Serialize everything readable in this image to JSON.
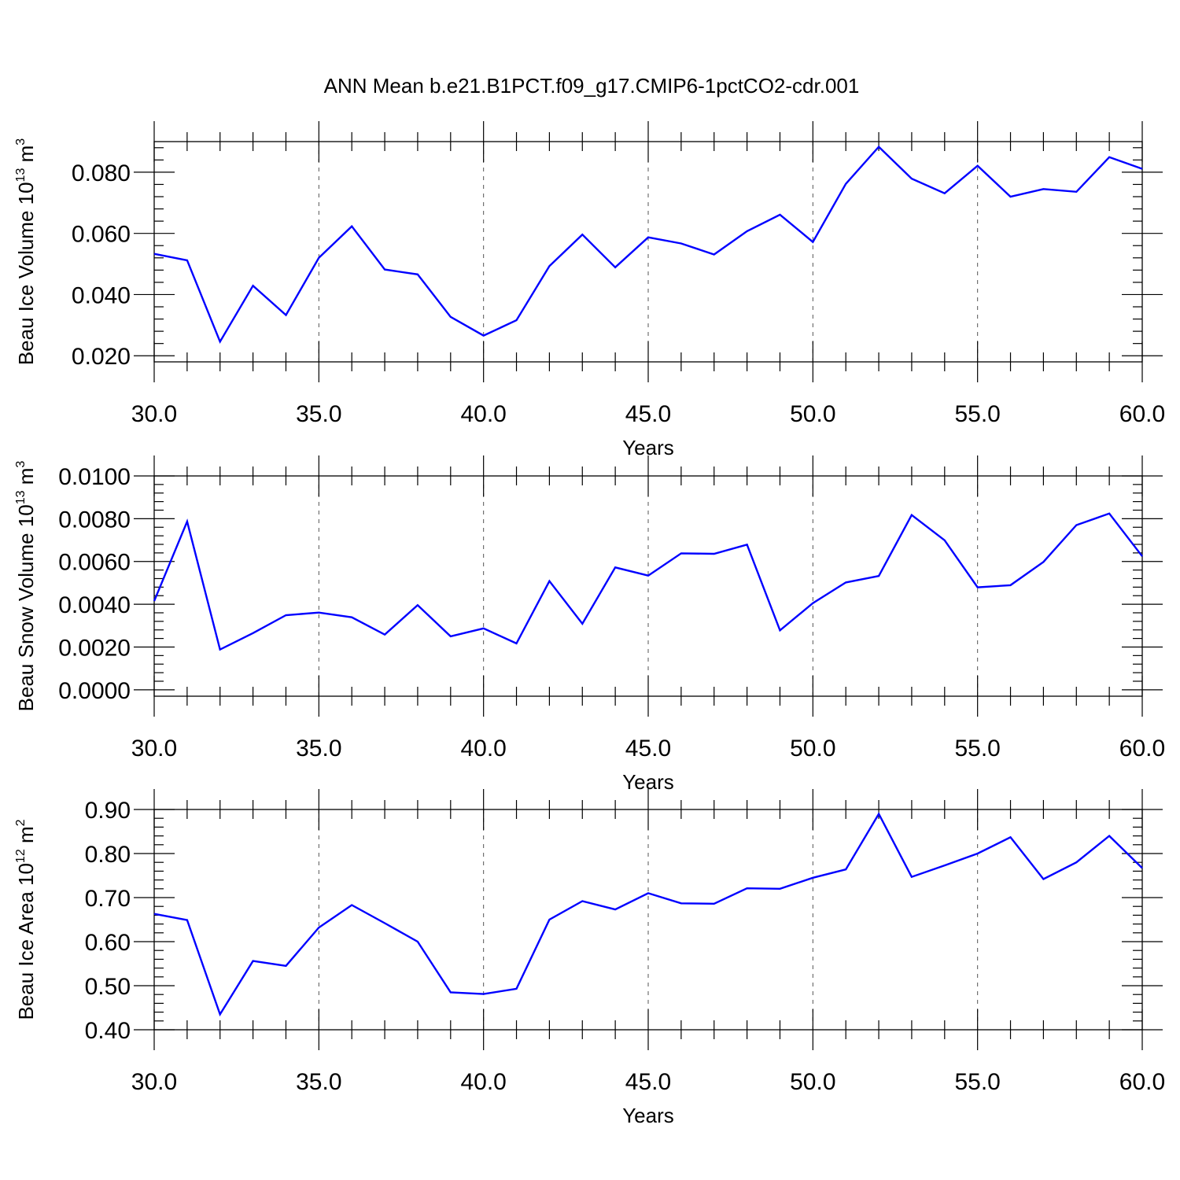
{
  "title": "ANN Mean b.e21.B1PCT.f09_g17.CMIP6-1pctCO2-cdr.001",
  "colors": {
    "line": "#0000ff",
    "axis": "#000000",
    "grid": "#555555"
  },
  "chart_data": [
    {
      "type": "line",
      "xlabel": "Years",
      "ylabel": {
        "text": "Beau Ice Volume 10",
        "sup1": "13",
        "mid": " m",
        "sup2": "3"
      },
      "xlim": [
        30,
        60
      ],
      "ylim": [
        0.018,
        0.09
      ],
      "x_ticks": [
        30,
        35,
        40,
        45,
        50,
        55,
        60
      ],
      "x_tick_labels": [
        "30.0",
        "35.0",
        "40.0",
        "45.0",
        "50.0",
        "55.0",
        "60.0"
      ],
      "y_ticks": [
        0.02,
        0.04,
        0.06,
        0.08
      ],
      "y_tick_labels": [
        "0.020",
        "0.040",
        "0.060",
        "0.080"
      ],
      "y_minor_step": 0.004,
      "grid": "vertical-dashed",
      "x": [
        30,
        31,
        32,
        33,
        34,
        35,
        36,
        37,
        38,
        39,
        40,
        41,
        42,
        43,
        44,
        45,
        46,
        47,
        48,
        49,
        50,
        51,
        52,
        53,
        54,
        55,
        56,
        57,
        58,
        59,
        60
      ],
      "values": [
        0.0533,
        0.0512,
        0.0246,
        0.0429,
        0.0333,
        0.052,
        0.0623,
        0.0482,
        0.0466,
        0.0327,
        0.0266,
        0.0316,
        0.0493,
        0.0596,
        0.0489,
        0.0587,
        0.0567,
        0.0531,
        0.0607,
        0.0661,
        0.0572,
        0.0762,
        0.0883,
        0.0779,
        0.0731,
        0.0821,
        0.072,
        0.0745,
        0.0736,
        0.0849,
        0.0811
      ]
    },
    {
      "type": "line",
      "xlabel": "Years",
      "ylabel": {
        "text": "Beau Snow Volume 10",
        "sup1": "13",
        "mid": " m",
        "sup2": "3"
      },
      "xlim": [
        30,
        60
      ],
      "ylim": [
        -0.0003,
        0.01
      ],
      "x_ticks": [
        30,
        35,
        40,
        45,
        50,
        55,
        60
      ],
      "x_tick_labels": [
        "30.0",
        "35.0",
        "40.0",
        "45.0",
        "50.0",
        "55.0",
        "60.0"
      ],
      "y_ticks": [
        0.0,
        0.002,
        0.004,
        0.006,
        0.008,
        0.01
      ],
      "y_tick_labels": [
        "0.0000",
        "0.0020",
        "0.0040",
        "0.0060",
        "0.0080",
        "0.0100"
      ],
      "y_minor_step": 0.0004,
      "grid": "vertical-dashed",
      "x": [
        30,
        31,
        32,
        33,
        34,
        35,
        36,
        37,
        38,
        39,
        40,
        41,
        42,
        43,
        44,
        45,
        46,
        47,
        48,
        49,
        50,
        51,
        52,
        53,
        54,
        55,
        56,
        57,
        58,
        59,
        60
      ],
      "values": [
        0.00415,
        0.00787,
        0.00188,
        0.00265,
        0.00349,
        0.00361,
        0.00339,
        0.00258,
        0.00396,
        0.0025,
        0.00287,
        0.00217,
        0.00508,
        0.00309,
        0.00572,
        0.00534,
        0.00638,
        0.00636,
        0.00679,
        0.00278,
        0.00405,
        0.00502,
        0.00532,
        0.00817,
        0.00699,
        0.00479,
        0.00489,
        0.00598,
        0.0077,
        0.00824,
        0.00624
      ]
    },
    {
      "type": "line",
      "xlabel": "Years",
      "ylabel": {
        "text": "Beau Ice Area 10",
        "sup1": "12",
        "mid": " m",
        "sup2": "2"
      },
      "xlim": [
        30,
        60
      ],
      "ylim": [
        0.4,
        0.9
      ],
      "x_ticks": [
        30,
        35,
        40,
        45,
        50,
        55,
        60
      ],
      "x_tick_labels": [
        "30.0",
        "35.0",
        "40.0",
        "45.0",
        "50.0",
        "55.0",
        "60.0"
      ],
      "y_ticks": [
        0.4,
        0.5,
        0.6,
        0.7,
        0.8,
        0.9
      ],
      "y_tick_labels": [
        "0.40",
        "0.50",
        "0.60",
        "0.70",
        "0.80",
        "0.90"
      ],
      "y_minor_step": 0.02,
      "grid": "vertical-dashed",
      "x": [
        30,
        31,
        32,
        33,
        34,
        35,
        36,
        37,
        38,
        39,
        40,
        41,
        42,
        43,
        44,
        45,
        46,
        47,
        48,
        49,
        50,
        51,
        52,
        53,
        54,
        55,
        56,
        57,
        58,
        59,
        60
      ],
      "values": [
        0.663,
        0.649,
        0.435,
        0.556,
        0.545,
        0.632,
        0.683,
        0.642,
        0.6,
        0.485,
        0.481,
        0.493,
        0.65,
        0.692,
        0.673,
        0.71,
        0.687,
        0.686,
        0.721,
        0.72,
        0.745,
        0.764,
        0.89,
        0.747,
        0.773,
        0.8,
        0.837,
        0.742,
        0.78,
        0.84,
        0.767
      ]
    }
  ]
}
